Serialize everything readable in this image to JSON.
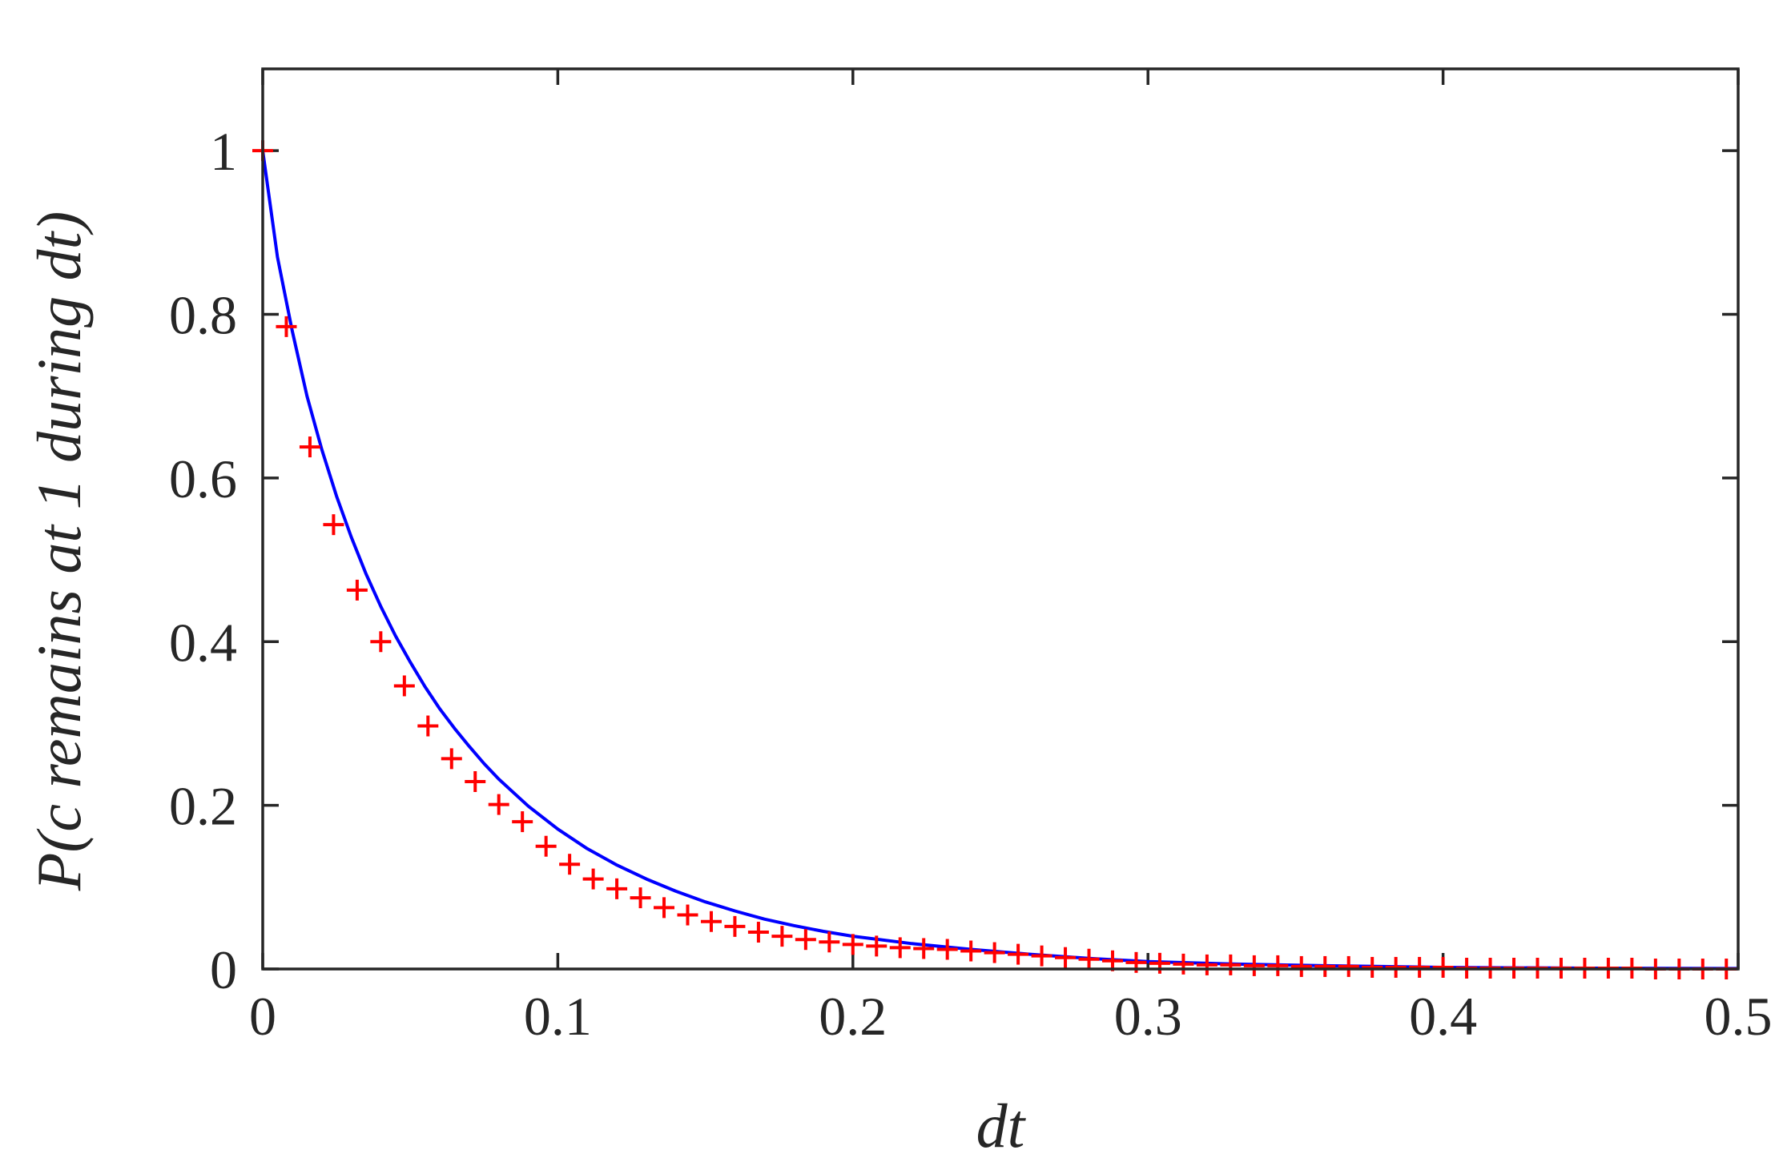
{
  "chart_data": {
    "type": "line",
    "xlabel": "dt",
    "ylabel": "P(c remains at 1 during dt)",
    "xlim": [
      0,
      0.5
    ],
    "ylim": [
      0,
      1.1
    ],
    "x_ticks": [
      0,
      0.1,
      0.2,
      0.3,
      0.4,
      0.5
    ],
    "x_tick_labels": [
      "0",
      "0.1",
      "0.2",
      "0.3",
      "0.4",
      "0.5"
    ],
    "y_ticks": [
      0,
      0.2,
      0.4,
      0.6,
      0.8,
      1
    ],
    "y_tick_labels": [
      "0",
      "0.2",
      "0.4",
      "0.6",
      "0.8",
      "1"
    ],
    "grid": false,
    "legend": "none",
    "series": [
      {
        "style": "line",
        "color": "#0000ff",
        "x": [
          0,
          0.005,
          0.01,
          0.015,
          0.02,
          0.025,
          0.03,
          0.035,
          0.04,
          0.045,
          0.05,
          0.055,
          0.06,
          0.065,
          0.07,
          0.075,
          0.08,
          0.09,
          0.1,
          0.11,
          0.12,
          0.13,
          0.14,
          0.15,
          0.16,
          0.17,
          0.18,
          0.19,
          0.2,
          0.22,
          0.24,
          0.26,
          0.28,
          0.3,
          0.33,
          0.36,
          0.4,
          0.45,
          0.5
        ],
        "y": [
          1.0,
          0.87,
          0.78,
          0.7,
          0.635,
          0.578,
          0.528,
          0.483,
          0.443,
          0.407,
          0.375,
          0.345,
          0.318,
          0.294,
          0.272,
          0.251,
          0.232,
          0.199,
          0.171,
          0.147,
          0.127,
          0.11,
          0.095,
          0.082,
          0.071,
          0.061,
          0.053,
          0.046,
          0.04,
          0.031,
          0.024,
          0.018,
          0.013,
          0.009,
          0.006,
          0.004,
          0.002,
          0.001,
          0.0006
        ]
      },
      {
        "style": "markers",
        "marker": "+",
        "color": "#ff0000",
        "x": [
          0.0,
          0.008,
          0.016,
          0.024,
          0.032,
          0.04,
          0.048,
          0.056,
          0.064,
          0.072,
          0.08,
          0.088,
          0.096,
          0.104,
          0.112,
          0.12,
          0.128,
          0.136,
          0.144,
          0.152,
          0.16,
          0.168,
          0.176,
          0.184,
          0.192,
          0.2,
          0.208,
          0.216,
          0.224,
          0.232,
          0.24,
          0.248,
          0.256,
          0.264,
          0.272,
          0.28,
          0.288,
          0.296,
          0.304,
          0.312,
          0.32,
          0.328,
          0.336,
          0.344,
          0.352,
          0.36,
          0.368,
          0.376,
          0.384,
          0.392,
          0.4,
          0.408,
          0.416,
          0.424,
          0.432,
          0.44,
          0.448,
          0.456,
          0.464,
          0.472,
          0.48,
          0.488,
          0.496
        ],
        "y": [
          1.0,
          0.785,
          0.638,
          0.543,
          0.463,
          0.4,
          0.346,
          0.297,
          0.257,
          0.229,
          0.201,
          0.18,
          0.15,
          0.128,
          0.11,
          0.098,
          0.087,
          0.075,
          0.066,
          0.058,
          0.052,
          0.045,
          0.04,
          0.036,
          0.033,
          0.03,
          0.028,
          0.026,
          0.025,
          0.024,
          0.022,
          0.02,
          0.018,
          0.016,
          0.014,
          0.012,
          0.01,
          0.008,
          0.007,
          0.006,
          0.005,
          0.005,
          0.004,
          0.004,
          0.003,
          0.003,
          0.003,
          0.002,
          0.002,
          0.002,
          0.002,
          0.001,
          0.001,
          0.001,
          0.001,
          0.001,
          0.001,
          0.001,
          0.001,
          0.0,
          0.0,
          0.0,
          0.0
        ]
      }
    ]
  }
}
